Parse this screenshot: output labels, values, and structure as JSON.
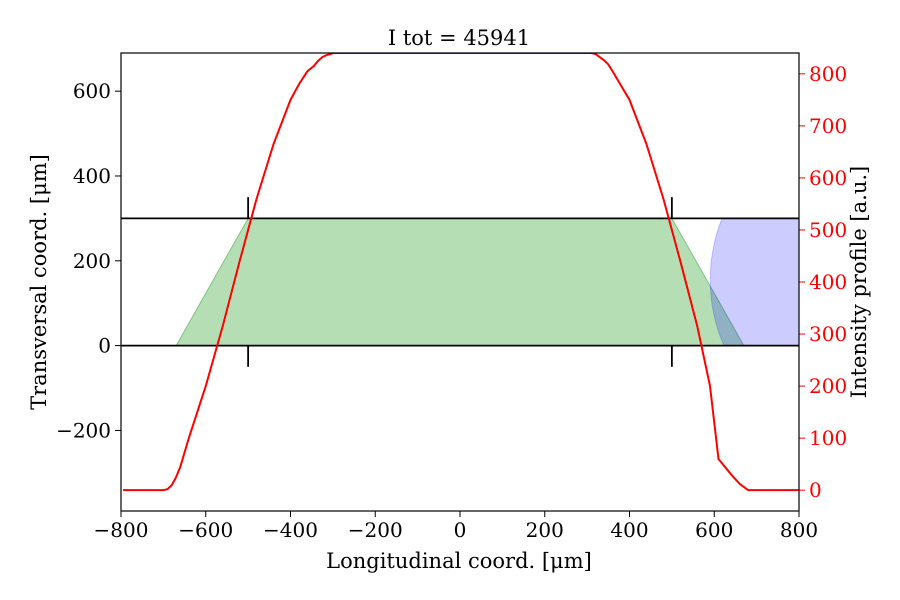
{
  "chart_data": {
    "type": "line",
    "title": "I tot = 45941",
    "xlabel": "Longitudinal coord. [μm]",
    "ylabel": "Transversal coord. [μm]",
    "y2label": "Intensity profile [a.u.]",
    "xlim": [
      -800,
      800
    ],
    "ylim": [
      -390,
      690
    ],
    "y2lim": [
      -40,
      840
    ],
    "xticks": [
      -800,
      -600,
      -400,
      -200,
      0,
      200,
      400,
      600,
      800
    ],
    "xtick_labels": [
      "−800",
      "−600",
      "−400",
      "−200",
      "0",
      "200",
      "400",
      "600",
      "800"
    ],
    "yticks": [
      -200,
      0,
      200,
      400,
      600
    ],
    "ytick_labels": [
      "−200",
      "0",
      "200",
      "400",
      "600"
    ],
    "y2ticks": [
      0,
      100,
      200,
      300,
      400,
      500,
      600,
      700,
      800
    ],
    "y2tick_labels": [
      "0",
      "100",
      "200",
      "300",
      "400",
      "500",
      "600",
      "700",
      "800"
    ],
    "grid": false,
    "colors": {
      "intensity": "#ff0000",
      "region_fill": "#2ca02c",
      "blue_fill": "#0000ff",
      "boundaries": "#000000",
      "right_axis": "#ff0000"
    },
    "series": [
      {
        "axis": "right",
        "color": "#ff0000",
        "x": [
          -795,
          -700,
          -690,
          -680,
          -670,
          -660,
          -640,
          -600,
          -560,
          -520,
          -480,
          -440,
          -400,
          -380,
          -360,
          -345,
          -335,
          -325,
          -315,
          -305,
          -300,
          -200,
          -100,
          0,
          100,
          200,
          300,
          310,
          320,
          330,
          340,
          350,
          360,
          400,
          440,
          480,
          520,
          560,
          590,
          610,
          640,
          660,
          680,
          700,
          800
        ],
        "y": [
          0,
          0,
          2,
          10,
          25,
          45,
          100,
          200,
          315,
          440,
          560,
          665,
          750,
          780,
          805,
          815,
          825,
          832,
          836,
          838,
          840,
          840,
          840,
          840,
          840,
          840,
          840,
          840,
          838,
          832,
          826,
          818,
          805,
          750,
          665,
          560,
          440,
          315,
          200,
          60,
          30,
          12,
          0,
          0,
          0
        ]
      }
    ],
    "regions": [
      {
        "polygon": [
          [
            -670,
            0
          ],
          [
            -500,
            300
          ],
          [
            500,
            300
          ],
          [
            670,
            0
          ]
        ],
        "color": "#2ca02c",
        "opacity": 0.35
      }
    ],
    "blue_region": {
      "x_start": 590,
      "x_end": 800,
      "y_top": 300,
      "y_bottom": 0,
      "color": "#0000ff",
      "opacity": 0.2
    },
    "boundary_lines": [
      0,
      300
    ],
    "markers": [
      {
        "x": -500,
        "y1": 300,
        "y2": 350
      },
      {
        "x": 500,
        "y1": 300,
        "y2": 350
      },
      {
        "x": -500,
        "y1": 0,
        "y2": -50
      },
      {
        "x": 500,
        "y1": 0,
        "y2": -50
      }
    ]
  }
}
